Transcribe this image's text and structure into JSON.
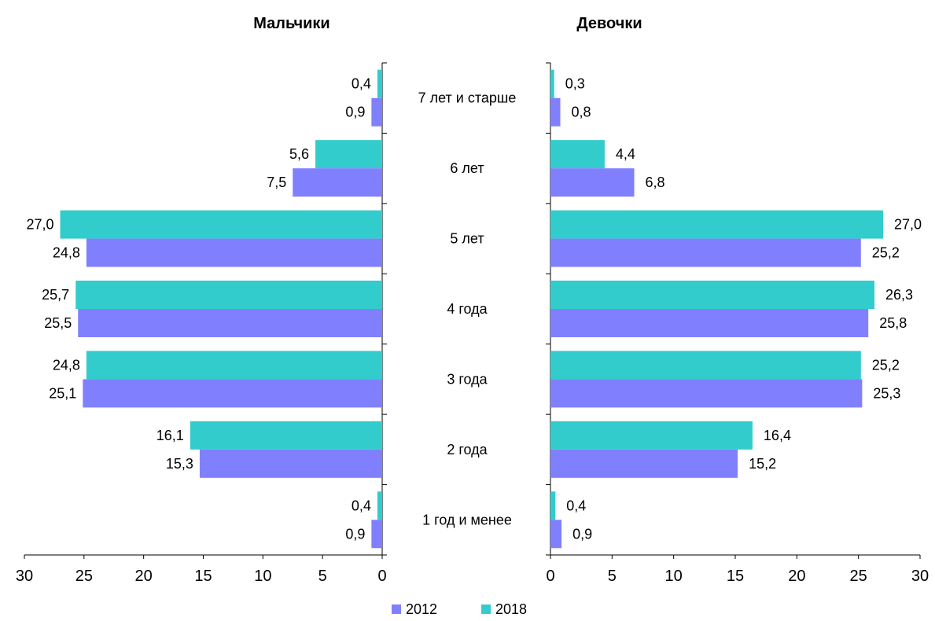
{
  "chart_data": [
    {
      "type": "bar",
      "orientation": "horizontal",
      "direction": "right-to-left",
      "title": "Мальчики",
      "categories": [
        "7 лет и старше",
        "6 лет",
        "5 лет",
        "4 года",
        "3 года",
        "2 года",
        "1 год и менее"
      ],
      "series": [
        {
          "name": "2018",
          "color": "#33cccc",
          "values": [
            0.4,
            5.6,
            27.0,
            25.7,
            24.8,
            16.1,
            0.4
          ],
          "labels": [
            "0,4",
            "5,6",
            "27,0",
            "25,7",
            "24,8",
            "16,1",
            "0,4"
          ]
        },
        {
          "name": "2012",
          "color": "#8080ff",
          "values": [
            0.9,
            7.5,
            24.8,
            25.5,
            25.1,
            15.3,
            0.9
          ],
          "labels": [
            "0,9",
            "7,5",
            "24,8",
            "25,5",
            "25,1",
            "15,3",
            "0,9"
          ]
        }
      ],
      "xlim": [
        0,
        30
      ],
      "xticks": [
        "0",
        "5",
        "10",
        "15",
        "20",
        "25",
        "30"
      ]
    },
    {
      "type": "bar",
      "orientation": "horizontal",
      "direction": "left-to-right",
      "title": "Девочки",
      "categories": [
        "7 лет и старше",
        "6 лет",
        "5 лет",
        "4 года",
        "3 года",
        "2 года",
        "1 год и менее"
      ],
      "series": [
        {
          "name": "2018",
          "color": "#33cccc",
          "values": [
            0.3,
            4.4,
            27.0,
            26.3,
            25.2,
            16.4,
            0.4
          ],
          "labels": [
            "0,3",
            "4,4",
            "27,0",
            "26,3",
            "25,2",
            "16,4",
            "0,4"
          ]
        },
        {
          "name": "2012",
          "color": "#8080ff",
          "values": [
            0.8,
            6.8,
            25.2,
            25.8,
            25.3,
            15.2,
            0.9
          ],
          "labels": [
            "0,8",
            "6,8",
            "25,2",
            "25,8",
            "25,3",
            "15,2",
            "0,9"
          ]
        }
      ],
      "xlim": [
        0,
        30
      ],
      "xticks": [
        "0",
        "5",
        "10",
        "15",
        "20",
        "25",
        "30"
      ]
    }
  ],
  "legend": [
    {
      "name": "2012",
      "color": "#8080ff"
    },
    {
      "name": "2018",
      "color": "#33cccc"
    }
  ]
}
